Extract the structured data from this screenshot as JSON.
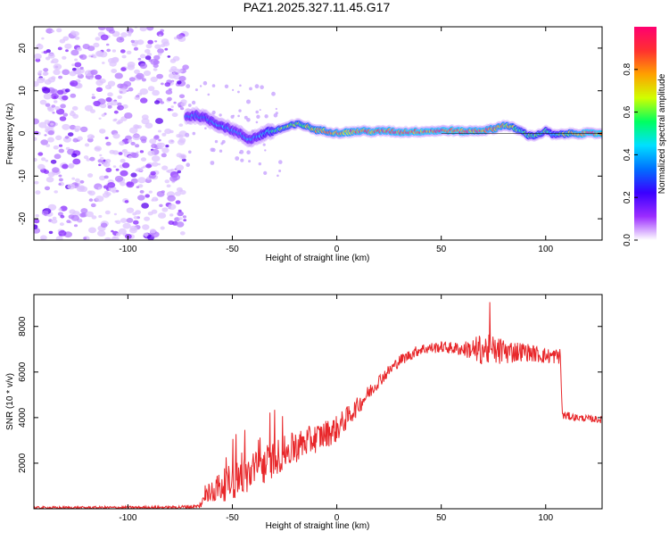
{
  "chart_data": [
    {
      "type": "heatmap",
      "title": "PAZ1.2025.327.11.45.G17",
      "xlabel": "Height of straight line (km)",
      "ylabel": "Frequency (Hz)",
      "xlim": [
        -145,
        127
      ],
      "ylim": [
        -25,
        25
      ],
      "xticks": [
        -100,
        -50,
        0,
        50,
        100
      ],
      "yticks": [
        -20,
        -10,
        0,
        10,
        20
      ],
      "colorbar": {
        "label": "Normalized spectral amplitude",
        "range": [
          0,
          1
        ],
        "ticks": [
          0.0,
          0.2,
          0.4,
          0.6,
          0.8
        ],
        "colormap": [
          "#ffffff",
          "#9b2cff",
          "#3a00ff",
          "#0070ff",
          "#00e0ff",
          "#00ff60",
          "#d0ff00",
          "#ffa000",
          "#ff3030",
          "#ff0070"
        ]
      },
      "noise_region_x": [
        -145,
        -72
      ],
      "ridge": {
        "x": [
          -72,
          -67,
          -62,
          -58,
          -54,
          -50,
          -46,
          -42,
          -38,
          -34,
          -30,
          -26,
          -22,
          -18,
          -14,
          -10,
          -6,
          -2,
          0,
          6,
          12,
          18,
          24,
          30,
          36,
          42,
          48,
          54,
          60,
          66,
          72,
          76,
          80,
          84,
          88,
          92,
          96,
          100,
          104,
          108,
          112,
          118,
          127
        ],
        "y": [
          4,
          4.2,
          3.4,
          2.4,
          1.6,
          0.8,
          -0.2,
          -1.4,
          -0.8,
          0.2,
          0.6,
          1.2,
          1.8,
          2.2,
          1.6,
          0.8,
          0.6,
          0.3,
          0.1,
          0.3,
          0.6,
          0.4,
          0.6,
          0.3,
          0.4,
          0.5,
          0.6,
          0.7,
          0.5,
          0.6,
          0.8,
          1.2,
          2.0,
          1.4,
          0.6,
          -0.5,
          -0.4,
          0.6,
          -0.4,
          -0.2,
          0.0,
          0.0,
          0.0
        ],
        "amplitude": [
          0.35,
          0.4,
          0.38,
          0.4,
          0.42,
          0.38,
          0.36,
          0.4,
          0.38,
          0.5,
          0.55,
          0.6,
          0.62,
          0.65,
          0.7,
          0.75,
          0.8,
          0.82,
          0.85,
          0.88,
          0.9,
          0.92,
          0.93,
          0.94,
          0.95,
          0.96,
          0.95,
          0.96,
          0.95,
          0.92,
          0.9,
          0.85,
          0.8,
          0.7,
          0.6,
          0.55,
          0.6,
          0.55,
          0.5,
          0.6,
          0.7,
          0.95,
          0.95
        ]
      }
    },
    {
      "type": "line",
      "series": [
        {
          "name": "SNR",
          "color": "#e8272a"
        }
      ],
      "xlabel": "Height of straight line (km)",
      "ylabel": "SNR (10 * v/v)",
      "xlim": [
        -145,
        127
      ],
      "ylim": [
        0,
        9400
      ],
      "xticks": [
        -100,
        -50,
        0,
        50,
        100
      ],
      "yticks": [
        2000,
        4000,
        6000,
        8000
      ],
      "envelope": {
        "x": [
          -145,
          -80,
          -66,
          -60,
          -50,
          -40,
          -30,
          -20,
          -10,
          0,
          10,
          20,
          30,
          40,
          50,
          60,
          70,
          80,
          90,
          100,
          107,
          108,
          115,
          127
        ],
        "mean": [
          40,
          60,
          100,
          800,
          1200,
          1600,
          2200,
          2700,
          3100,
          3500,
          4500,
          5600,
          6500,
          7000,
          7100,
          7000,
          7000,
          6900,
          6900,
          6700,
          6700,
          4100,
          4000,
          3900
        ],
        "spread": [
          60,
          60,
          100,
          600,
          800,
          900,
          800,
          700,
          650,
          600,
          400,
          300,
          250,
          250,
          250,
          300,
          700,
          600,
          400,
          350,
          350,
          200,
          150,
          150
        ]
      }
    }
  ]
}
